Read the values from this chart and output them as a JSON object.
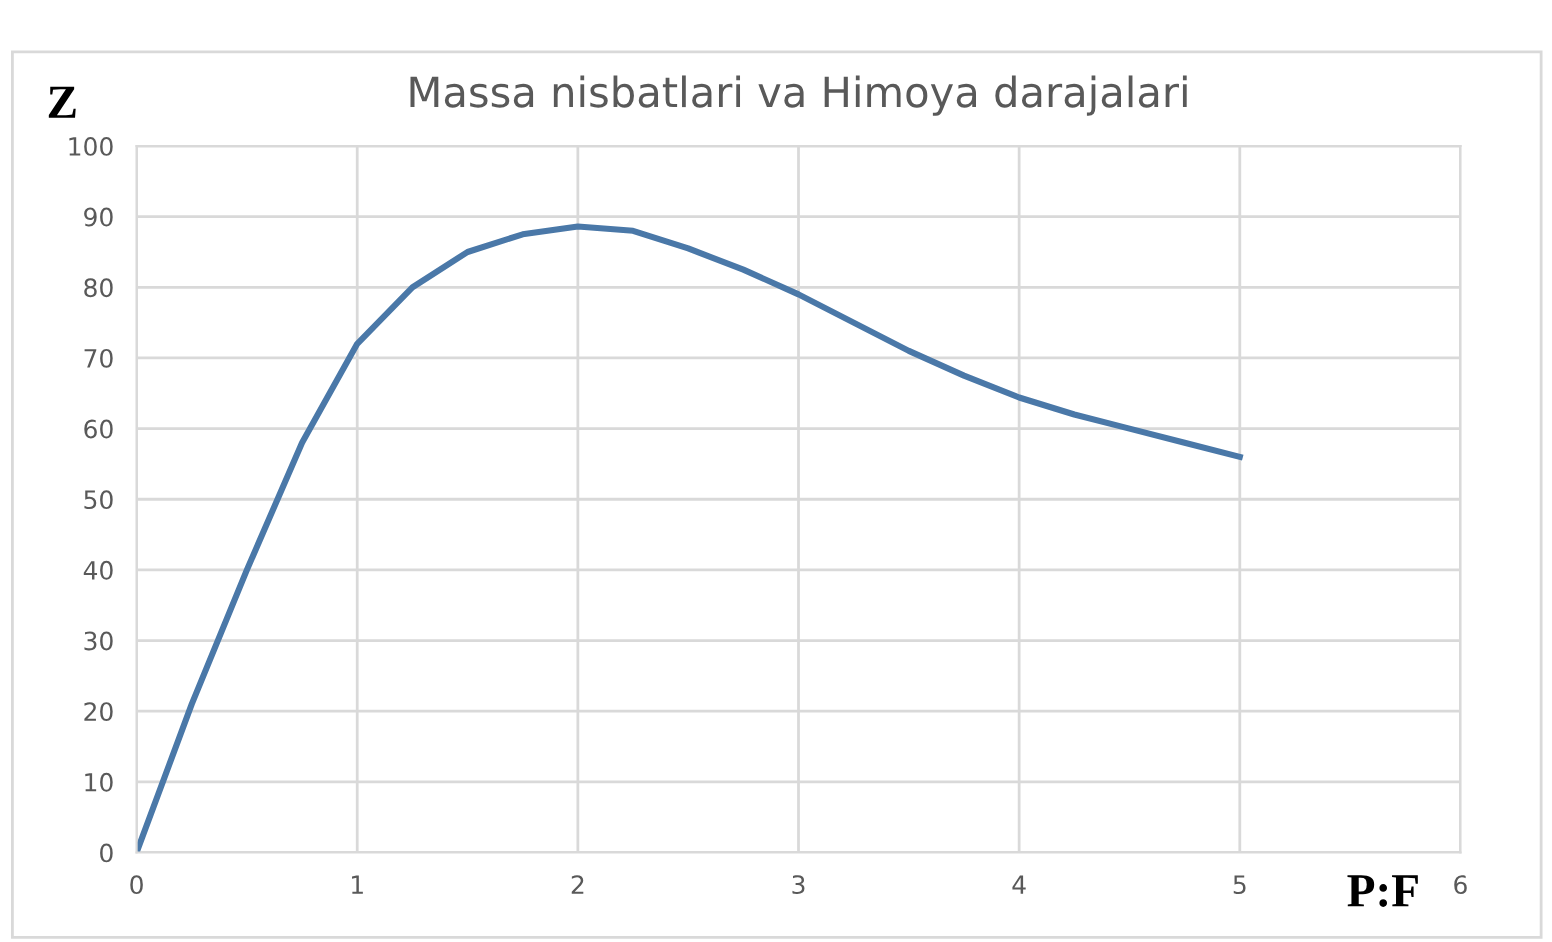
{
  "chart_data": {
    "type": "line",
    "title": "Massa nisbatlari va Himoya darajalari",
    "xlabel": "P:F",
    "ylabel": "Z",
    "x": [
      0,
      0.25,
      0.5,
      0.75,
      1,
      1.25,
      1.5,
      1.75,
      2,
      2.25,
      2.5,
      2.75,
      3,
      3.25,
      3.5,
      3.75,
      4,
      4.25,
      4.5,
      4.75,
      5
    ],
    "series": [
      {
        "color": "#4a78a8",
        "values": [
          0,
          21,
          40,
          58,
          72,
          80,
          85,
          87.5,
          88.6,
          88,
          85.5,
          82.5,
          79,
          75,
          71,
          67.5,
          64.4,
          62,
          60,
          58,
          56
        ]
      }
    ],
    "xlim": [
      0,
      6
    ],
    "xticks": [
      0,
      1,
      2,
      3,
      4,
      5,
      6
    ],
    "ylim": [
      0,
      100
    ],
    "yticks": [
      0,
      10,
      20,
      30,
      40,
      50,
      60,
      70,
      80,
      90,
      100
    ],
    "grid": true,
    "marker": "none",
    "line_style": "solid"
  }
}
